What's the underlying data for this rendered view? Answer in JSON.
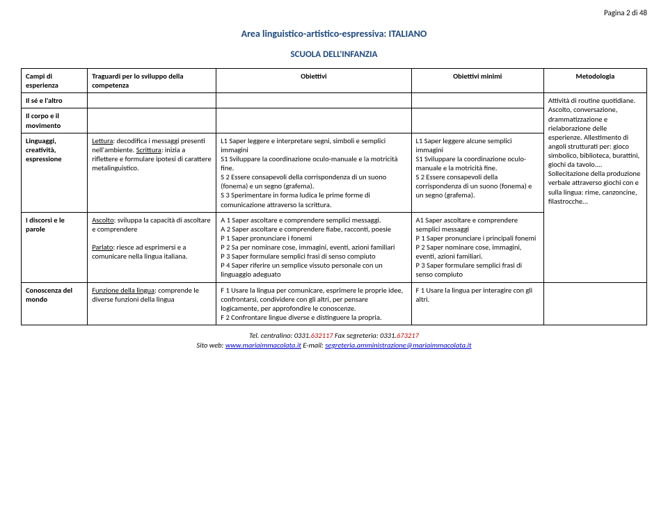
{
  "page_number": "Pagina 2 di 48",
  "title": "Area linguistico-artistico-espressiva: ITALIANO",
  "subtitle": "SCUOLA DELL'INFANZIA",
  "headers": {
    "c1": "Campi di esperienza",
    "c2": "Traguardi per lo sviluppo della competenza",
    "c3": "Obiettivi",
    "c4": "Obiettivi minimi",
    "c5": "Metodologia"
  },
  "rows": {
    "r1": {
      "c1": "Il sé e l'altro"
    },
    "r2": {
      "c1": "Il corpo e il movimento"
    },
    "r3": {
      "c1": "Linguaggi, creatività, espressione",
      "c2_label": "Lettura",
      "c2_rest": ": decodifica i messaggi presenti nell'ambiente. ",
      "c2_label2": "Scrittura",
      "c2_rest2": ": inizia a riflettere e formulare ipotesi di carattere metalinguistico.",
      "c3": "L1 Saper leggere e interpretare segni, simboli e semplici immagini\nS1 Sviluppare la coordinazione oculo-manuale e la motricità fine.\nS 2 Essere consapevoli della corrispondenza di un suono (fonema) e un segno (grafema).\nS 3 Sperimentare in forma ludica le prime forme di comunicazione attraverso la scrittura.",
      "c4": "L1 Saper leggere alcune semplici immagini\nS1 Sviluppare la coordinazione oculo-manuale e la motricità fine.\nS 2 Essere consapevoli della corrispondenza di un suono (fonema) e un segno (grafema)."
    },
    "r4": {
      "c1": "I discorsi e le parole",
      "c2_label": "Ascolto",
      "c2_rest": ": sviluppa la capacità di ascoltare e comprendere",
      "c2_label2": "Parlato",
      "c2_rest2": ": riesce ad esprimersi e a comunicare nella lingua italiana.",
      "c3": "A 1 Saper ascoltare e comprendere semplici messaggi.\nA 2 Saper ascoltare e comprendere fiabe, racconti, poesie\nP 1 Saper pronunciare i fonemi\nP 2 Sa per nominare cose, immagini, eventi, azioni familiari\nP 3 Saper formulare semplici frasi di senso compiuto\nP 4 Saper riferire un semplice vissuto personale con un linguaggio adeguato",
      "c4": "A1 Saper ascoltare e comprendere semplici messaggi\nP 1 Saper pronunciare i principali fonemi\nP 2 Saper nominare cose, immagini, eventi, azioni familiari.\nP 3  Saper formulare semplici frasi di senso compiuto"
    },
    "r5": {
      "c1": "Conoscenza del mondo",
      "c2_label": "Funzione della lingua",
      "c2_rest": ": comprende le diverse funzioni della lingua",
      "c3": "F 1 Usare la lingua per comunicare, esprimere le proprie idee, confrontarsi, condividere con gli altri, per pensare logicamente, per approfondire le conoscenze.\nF 2 Confrontare lingue diverse e distinguere la propria.",
      "c4": "F 1 Usare la lingua per interagire con gli altri."
    },
    "methodology": "Attività di routine quotidiane. Ascolto, conversazione, drammatizzazione e rielaborazione delle esperienze. Allestimento di angoli strutturati per: gioco simbolico, biblioteca, burattini, giochi da tavolo.... Sollecitazione della produzione verbale attraverso giochi con e sulla lingua: rime, canzoncine, filastrocche..."
  },
  "footer": {
    "line1a": "Tel. centralino: 0331.",
    "line1b": "632117",
    "line1c": " Fax segreteria: 0331.",
    "line1d": "673217",
    "line2a": "Sito web: ",
    "link1": "www.mariaimmacolata.it",
    "line2b": "   E-mail:  ",
    "link2": "segreteria.amministrazione@mariaimmacolata.it"
  }
}
